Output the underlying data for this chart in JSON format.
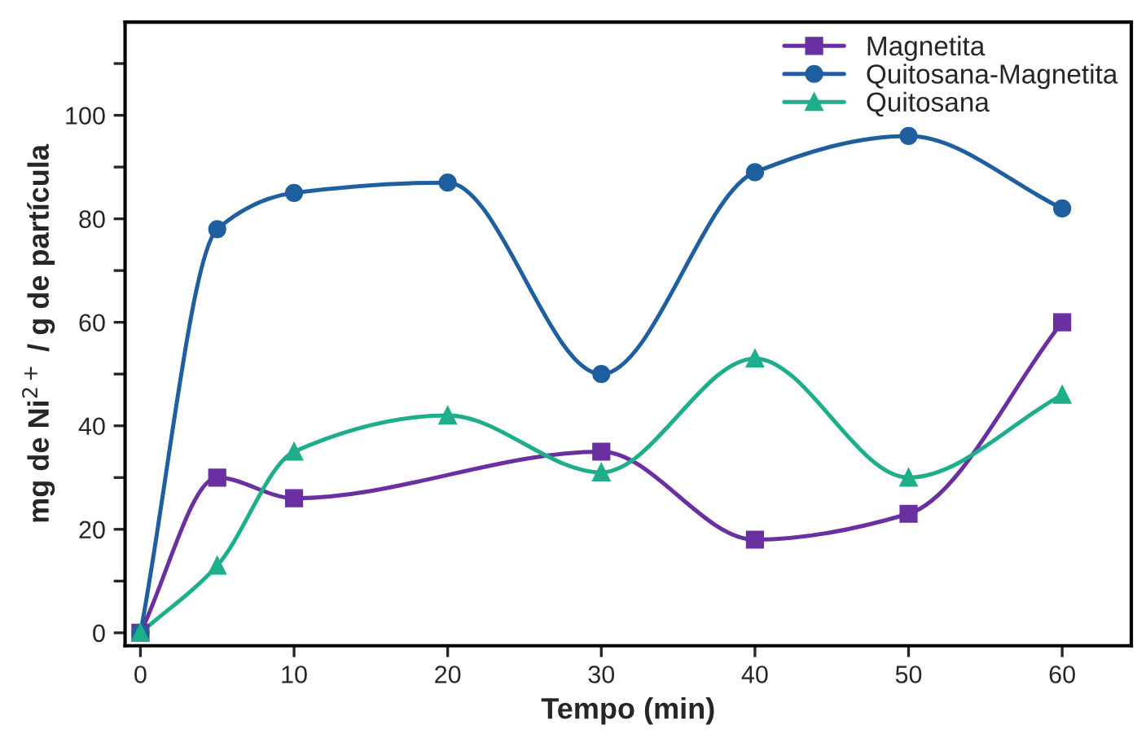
{
  "chart_data": {
    "type": "line",
    "xlabel": "Tempo (min)",
    "ylabel": "mg de Ni$^{2+}$ / g de partícula",
    "xlim": [
      -1,
      64.5
    ],
    "ylim": [
      -2.5,
      118
    ],
    "xticks": [
      0,
      10,
      20,
      30,
      40,
      50,
      60
    ],
    "yticks": [
      0,
      {
        "value": 10,
        "label": null
      },
      20,
      {
        "value": 30,
        "label": null
      },
      40,
      {
        "value": 50,
        "label": null
      },
      60,
      {
        "value": 70,
        "label": null
      },
      80,
      {
        "value": 90,
        "label": null
      },
      100,
      {
        "value": 110,
        "label": null
      }
    ],
    "grid": false,
    "legend": "top right",
    "series": [
      {
        "name": "Magnetita",
        "color": "#6a2fa0",
        "marker": "square",
        "x": [
          0,
          5,
          10,
          30,
          40,
          50,
          60
        ],
        "values": [
          0,
          30,
          26,
          35,
          18,
          23,
          60
        ]
      },
      {
        "name": "Quitosana-Magnetita",
        "color": "#1f5f9f",
        "marker": "circle",
        "x": [
          0,
          5,
          10,
          20,
          30,
          40,
          50,
          60
        ],
        "values": [
          0,
          78,
          85,
          87,
          50,
          89,
          96,
          82
        ]
      },
      {
        "name": "Quitosana",
        "color": "#1fae8c",
        "marker": "triangle",
        "x": [
          0,
          5,
          10,
          20,
          30,
          40,
          50,
          60
        ],
        "values": [
          0,
          13,
          35,
          42,
          31,
          53,
          30,
          46
        ]
      }
    ]
  }
}
